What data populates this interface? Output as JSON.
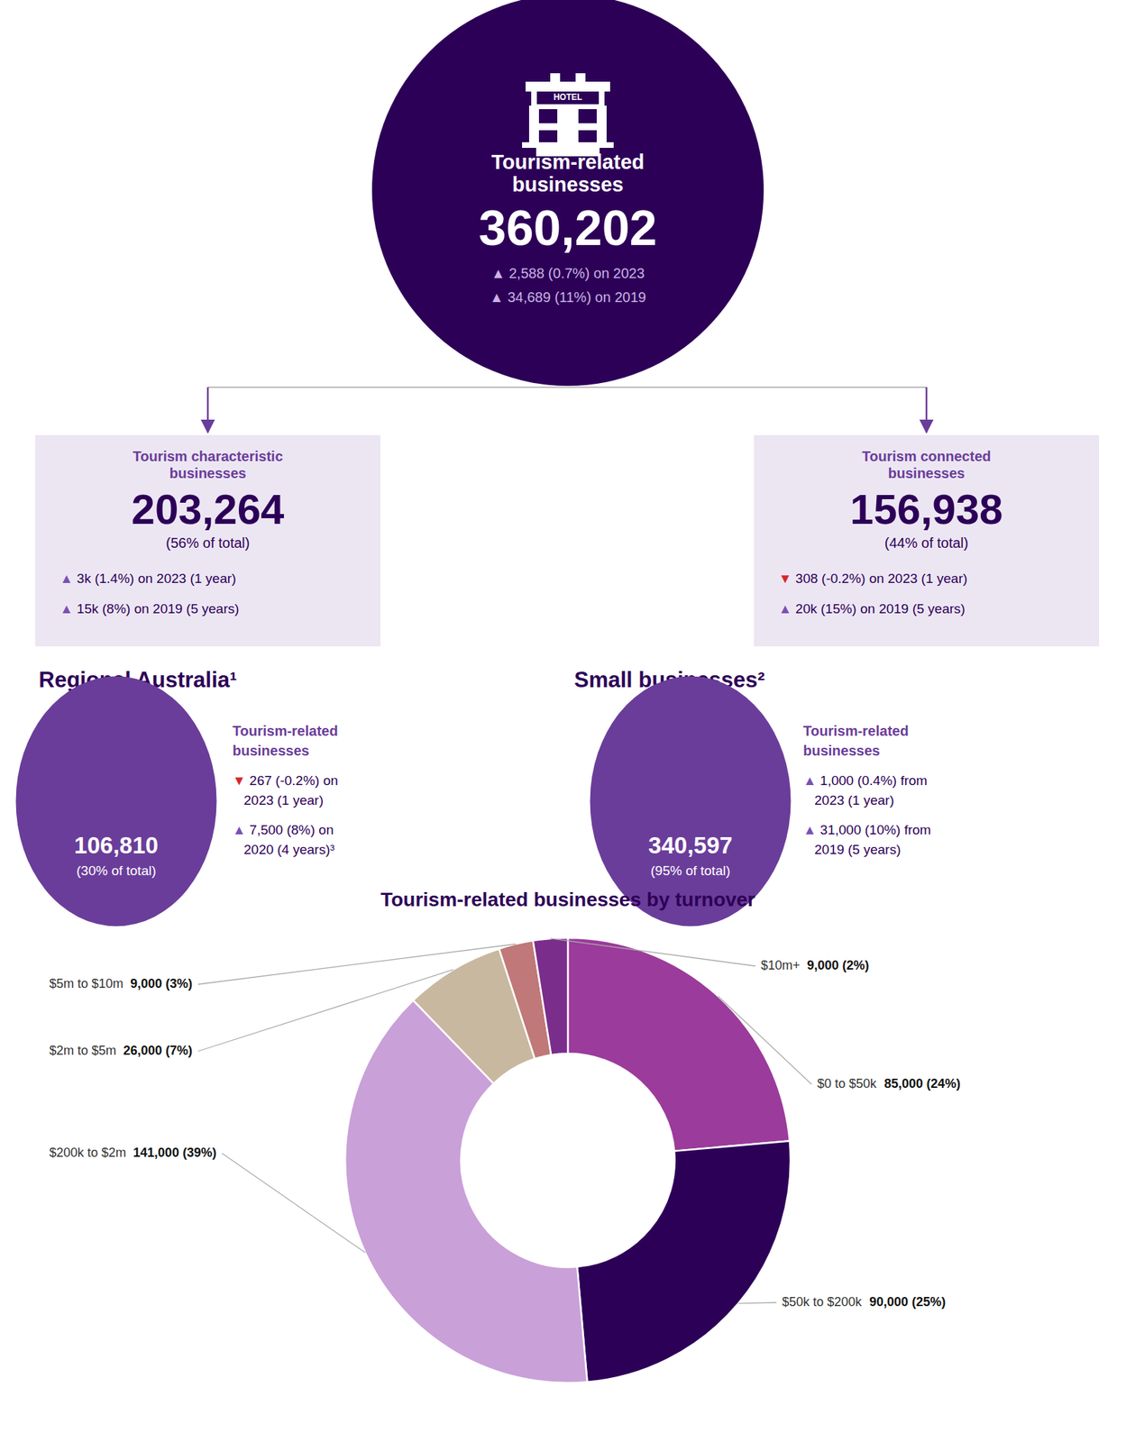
{
  "chart_data": {
    "type": "pie",
    "title": "Tourism-related businesses by turnover",
    "categories": [
      "$0 to $50k",
      "$50k to $200k",
      "$200k to $2m",
      "$2m to $5m",
      "$5m to $10m",
      "$10m+"
    ],
    "values": [
      85000,
      90000,
      141000,
      26000,
      9000,
      9000
    ],
    "value_labels": [
      "85,000 (24%)",
      "90,000 (25%)",
      "141,000 (39%)",
      "26,000 (7%)",
      "9,000 (3%)",
      "9,000 (2%)"
    ],
    "colors": [
      "#9b3b9b",
      "#2d0057",
      "#c9a0d8",
      "#c8b8a0",
      "#c07878",
      "#7b2d8b"
    ],
    "data_labels": true,
    "annotations": [
      "Tourism-related",
      "businesses",
      "360,202",
      "▲  2,588 (0.7%) on 2023",
      "▲  34,689 (11%) on 2019",
      "HOTEL",
      "Tourism characteristic\nbusinesses",
      "203,264",
      "(56% of total)",
      "▲ 3k (1.4%) on 2023 (1 year)",
      "▲ 15k (8%) on 2019 (5 years)",
      "Tourism connected\nbusinesses",
      "156,938",
      "(44% of total)",
      "▼ 308 (-0.2%) on 2023 (1 year)",
      "▲ 20k (15%) on 2019 (5 years)",
      "Regional Australia¹",
      "106,810",
      "(30% of total)",
      "Tourism-related",
      "businesses",
      "▼ 267 (-0.2%) on",
      "2023 (1 year)",
      "▲ 7,500 (8%) on",
      "2020 (4 years)³",
      "Small businesses²",
      "340,597",
      "(95% of total)",
      "Tourism-related",
      "businesses",
      "▲ 1,000 (0.4%) from",
      "2023 (1 year)",
      "▲ 31,000 (10%) from",
      "2019 (5 years)"
    ]
  }
}
